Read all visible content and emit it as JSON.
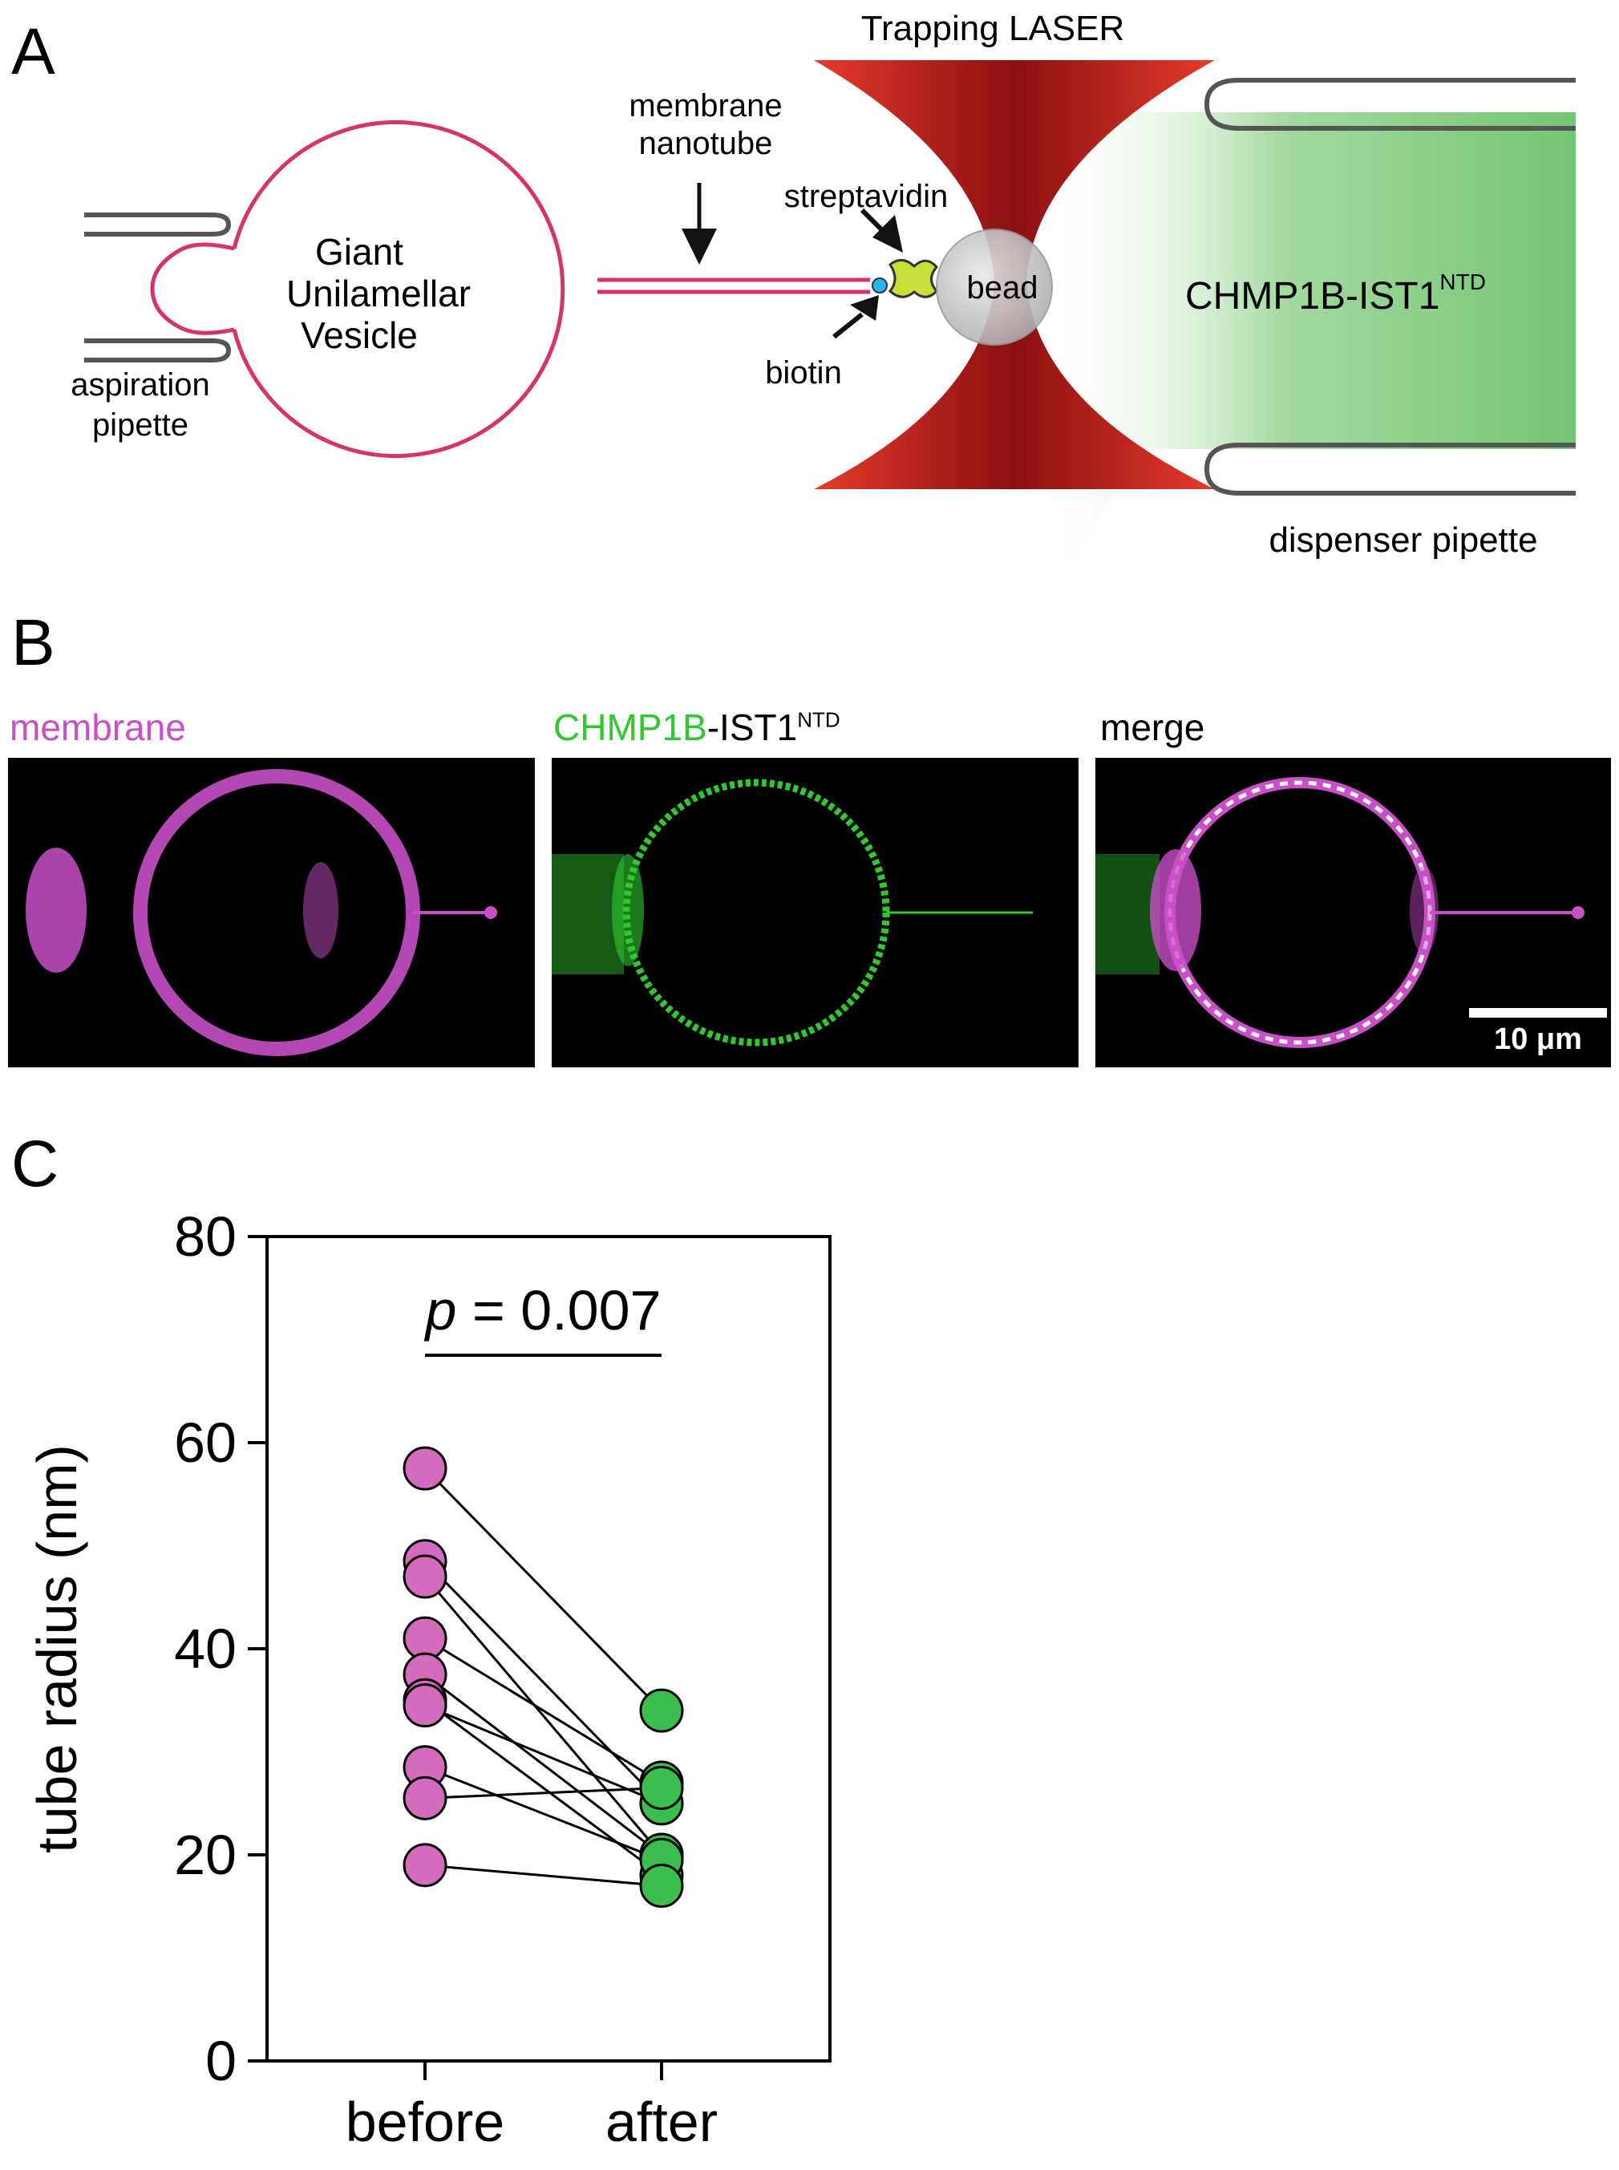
{
  "panels": {
    "a": "A",
    "b": "B",
    "c": "C"
  },
  "schematic": {
    "trapping_laser": "Trapping LASER",
    "membrane_nanotube_line1": "membrane",
    "membrane_nanotube_line2": "nanotube",
    "streptavidin": "streptavidin",
    "biotin": "biotin",
    "bead": "bead",
    "vesicle_line1": "Giant",
    "vesicle_line2": "Unilamellar",
    "vesicle_line3": "Vesicle",
    "aspiration_line1": "aspiration",
    "aspiration_line2": "pipette",
    "protein_main": "CHMP1B-IST1",
    "protein_sup": "NTD",
    "dispenser": "dispenser pipette",
    "colors": {
      "membrane": "#d6336c",
      "laser": "#c41e1e",
      "protein": "#6cc36c",
      "pipette": "#555555"
    }
  },
  "micrographs": {
    "label_membrane": "membrane",
    "label_protein_green": "CHMP1B",
    "label_protein_black": "-IST1",
    "label_protein_sup": "NTD",
    "label_merge": "merge",
    "scale_bar": "10 μm",
    "colors": {
      "membrane": "#c84fc8",
      "protein": "#2fc92f"
    }
  },
  "chart_data": {
    "type": "scatter",
    "categories": [
      "before",
      "after"
    ],
    "ylabel": "tube radius (nm)",
    "ylim": [
      0,
      80
    ],
    "yticks": [
      0,
      20,
      40,
      60,
      80
    ],
    "annotation": {
      "italic": "p",
      "rest": " = 0.007"
    },
    "colors": {
      "before": "#d46bbd",
      "after": "#3cbe4e"
    },
    "pairs": [
      {
        "before": 57.5,
        "after": 34.0
      },
      {
        "before": 48.5,
        "after": 25.0
      },
      {
        "before": 47.0,
        "after": 20.0
      },
      {
        "before": 41.0,
        "after": 27.0
      },
      {
        "before": 37.5,
        "after": 20.0
      },
      {
        "before": 35.0,
        "after": 18.0
      },
      {
        "before": 34.5,
        "after": 25.0
      },
      {
        "before": 28.5,
        "after": 19.5
      },
      {
        "before": 25.5,
        "after": 26.5
      },
      {
        "before": 19.0,
        "after": 17.0
      }
    ]
  }
}
